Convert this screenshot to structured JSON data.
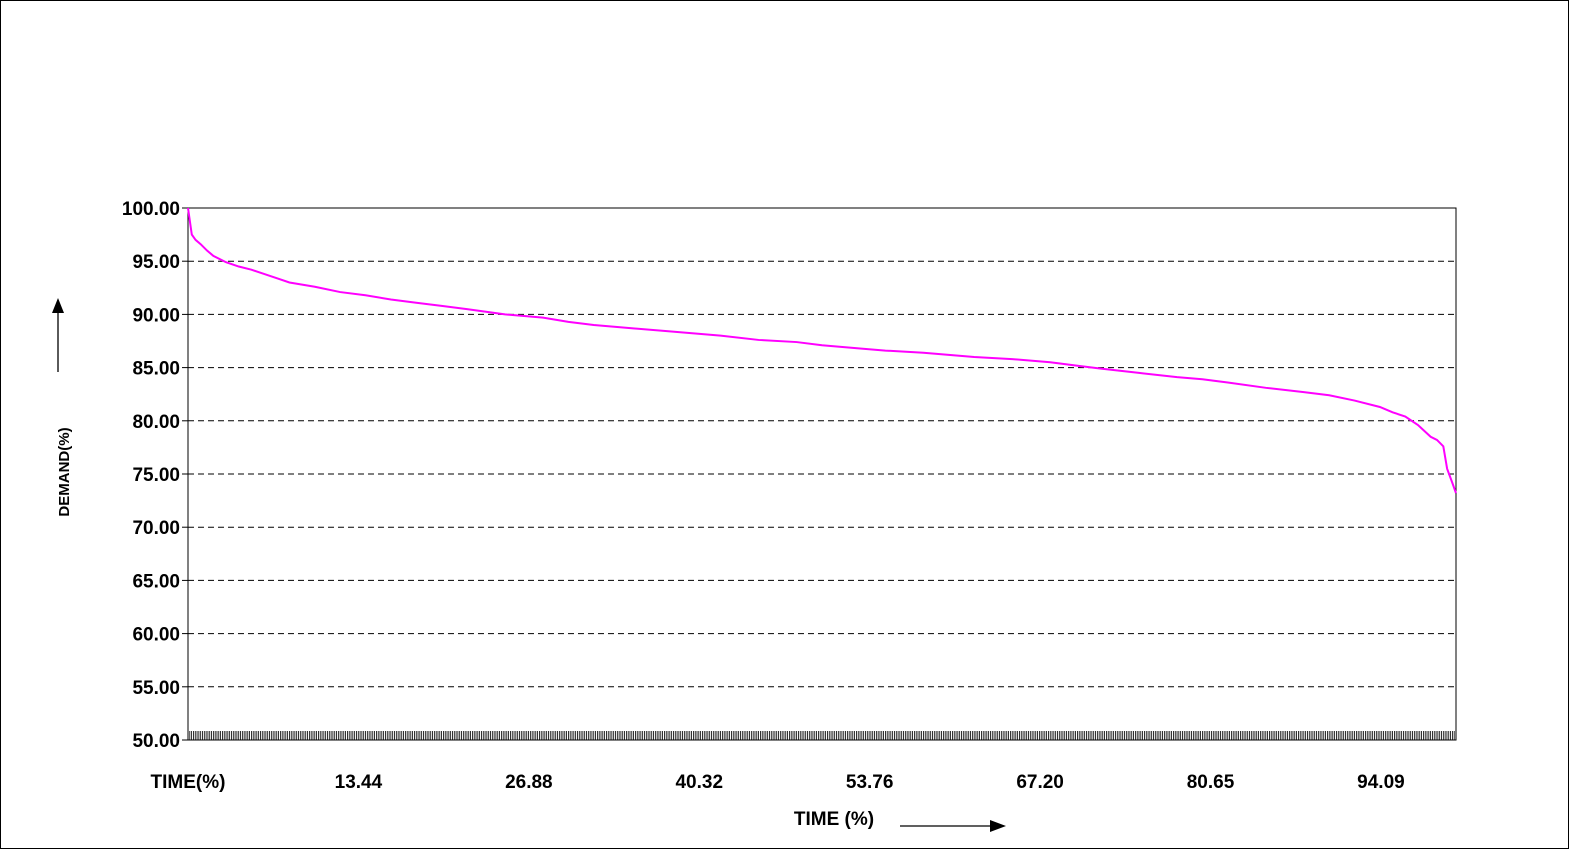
{
  "chart_data": {
    "type": "line",
    "title": "",
    "xlabel": "TIME (%)",
    "ylabel": "DEMAND(%)",
    "x_tick_labels": [
      "TIME(%)",
      "13.44",
      "26.88",
      "40.32",
      "53.76",
      "67.20",
      "80.65",
      "94.09"
    ],
    "y_ticks": [
      "50.00",
      "55.00",
      "60.00",
      "65.00",
      "70.00",
      "75.00",
      "80.00",
      "85.00",
      "90.00",
      "95.00",
      "100.00"
    ],
    "xlim": [
      0,
      100
    ],
    "ylim": [
      50,
      100
    ],
    "grid": "horizontal-dashed",
    "legend": "none",
    "line_color": "#ff00ff",
    "series": [
      {
        "x": [
          0,
          0.3,
          0.6,
          1.0,
          1.5,
          2.0,
          3,
          4,
          5,
          6,
          7,
          8,
          10,
          12,
          14,
          16,
          18,
          20,
          22,
          25,
          28,
          30,
          32,
          35,
          38,
          40,
          42,
          45,
          48,
          50,
          53,
          55,
          58,
          60,
          62,
          65,
          68,
          70,
          72,
          75,
          78,
          80,
          82,
          85,
          88,
          90,
          92,
          94,
          95,
          96,
          97,
          98,
          98.5,
          99,
          99.3,
          99.7,
          100
        ],
        "y": [
          100,
          97.5,
          97.0,
          96.6,
          96.0,
          95.5,
          94.9,
          94.5,
          94.2,
          93.8,
          93.4,
          93.0,
          92.6,
          92.1,
          91.8,
          91.4,
          91.1,
          90.8,
          90.5,
          90.0,
          89.7,
          89.3,
          89.0,
          88.7,
          88.4,
          88.2,
          88.0,
          87.6,
          87.4,
          87.1,
          86.8,
          86.6,
          86.4,
          86.2,
          86.0,
          85.8,
          85.5,
          85.2,
          84.9,
          84.5,
          84.1,
          83.9,
          83.6,
          83.1,
          82.7,
          82.4,
          81.9,
          81.3,
          80.8,
          80.4,
          79.6,
          78.5,
          78.2,
          77.6,
          75.5,
          74.2,
          73.2
        ]
      }
    ]
  }
}
